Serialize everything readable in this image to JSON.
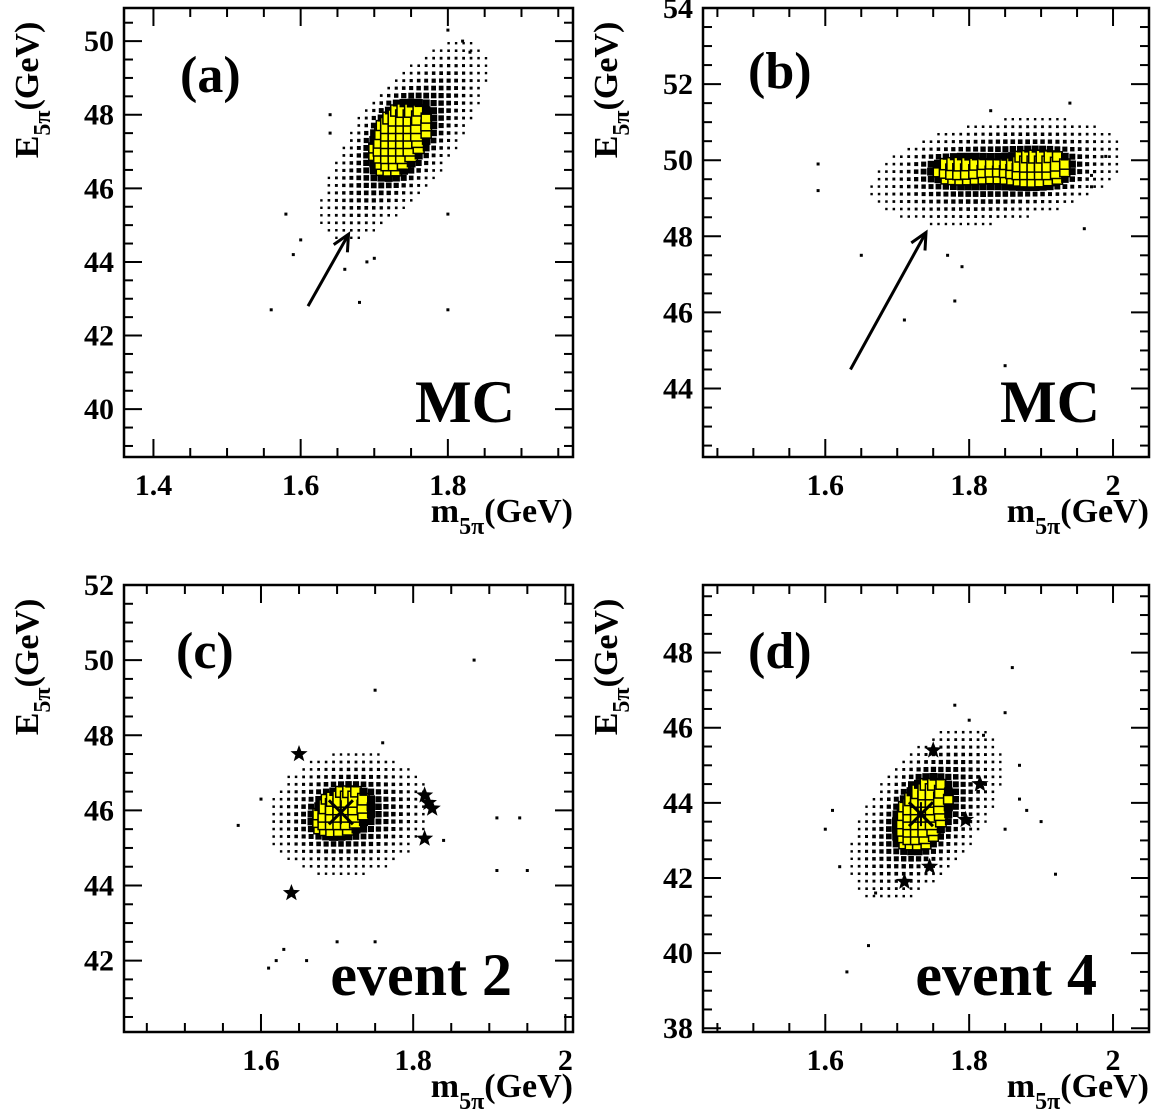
{
  "chart_data": [
    {
      "type": "scatter",
      "label": "(a)",
      "note": "MC",
      "xlabel": "m",
      "xlabel_sub": "5π",
      "xlabel_unit": "(GeV)",
      "ylabel": "E",
      "ylabel_sub": "5π",
      "ylabel_unit": "(GeV)",
      "xlim": [
        1.36,
        1.97
      ],
      "ylim": [
        38.7,
        50.9
      ],
      "xticks": [
        1.4,
        1.6,
        1.8
      ],
      "yticks": [
        40,
        42,
        44,
        46,
        48,
        50
      ],
      "histogram": {
        "center": [
          1.74,
          47.3
        ],
        "spread": [
          0.048,
          1.15
        ],
        "corr": 0.72,
        "peaks": [
          [
            1.733,
            47.45
          ],
          [
            1.723,
            47.0
          ],
          [
            1.745,
            47.7
          ]
        ]
      },
      "sparse_points": [
        [
          1.56,
          42.7
        ],
        [
          1.58,
          45.3
        ],
        [
          1.59,
          44.2
        ],
        [
          1.6,
          44.6
        ],
        [
          1.64,
          47.5
        ],
        [
          1.64,
          48.0
        ],
        [
          1.66,
          43.8
        ],
        [
          1.68,
          42.9
        ],
        [
          1.69,
          44.0
        ],
        [
          1.7,
          44.1
        ],
        [
          1.8,
          42.7
        ],
        [
          1.8,
          50.3
        ],
        [
          1.8,
          45.3
        ],
        [
          1.82,
          50.0
        ],
        [
          1.83,
          49.7
        ]
      ],
      "arrow": {
        "from": [
          1.61,
          42.8
        ],
        "to": [
          1.665,
          44.75
        ]
      }
    },
    {
      "type": "scatter",
      "label": "(b)",
      "note": "MC",
      "xlabel": "m",
      "xlabel_sub": "5π",
      "xlabel_unit": "(GeV)",
      "ylabel": "E",
      "ylabel_sub": "5π",
      "ylabel_unit": "(GeV)",
      "xlim": [
        1.43,
        2.05
      ],
      "ylim": [
        42.2,
        54.0
      ],
      "xticks": [
        1.6,
        1.8,
        2.0
      ],
      "xticklabels": [
        "1.6",
        "1.8",
        "2"
      ],
      "yticks": [
        44,
        46,
        48,
        50,
        52,
        54
      ],
      "histogram": {
        "center": [
          1.84,
          49.7
        ],
        "spread": [
          0.075,
          0.6
        ],
        "corr": 0.3,
        "peaks": [
          [
            1.785,
            49.75
          ],
          [
            1.9,
            49.9
          ],
          [
            1.893,
            49.6
          ]
        ]
      },
      "sparse_points": [
        [
          1.59,
          49.9
        ],
        [
          1.59,
          49.2
        ],
        [
          1.65,
          47.5
        ],
        [
          1.71,
          45.8
        ],
        [
          1.77,
          47.5
        ],
        [
          1.78,
          46.3
        ],
        [
          1.79,
          47.2
        ],
        [
          1.85,
          44.6
        ],
        [
          1.96,
          48.2
        ],
        [
          1.97,
          49.6
        ],
        [
          1.97,
          49.3
        ],
        [
          1.99,
          50.1
        ],
        [
          1.94,
          51.5
        ],
        [
          1.83,
          51.3
        ]
      ],
      "arrow": {
        "from": [
          1.635,
          44.5
        ],
        "to": [
          1.74,
          48.1
        ]
      }
    },
    {
      "type": "scatter",
      "label": "(c)",
      "note": "event 2",
      "xlabel": "m",
      "xlabel_sub": "5π",
      "xlabel_unit": "(GeV)",
      "ylabel": "E",
      "ylabel_sub": "5π",
      "ylabel_unit": "(GeV)",
      "xlim": [
        1.42,
        2.01
      ],
      "ylim": [
        40.1,
        52.0
      ],
      "xticks": [
        1.6,
        1.8,
        2.0
      ],
      "xticklabels": [
        "1.6",
        "1.8",
        "2"
      ],
      "yticks": [
        42,
        44,
        46,
        48,
        50,
        52
      ],
      "histogram": {
        "center": [
          1.715,
          45.9
        ],
        "spread": [
          0.045,
          0.7
        ],
        "corr": 0.1,
        "peaks": [
          [
            1.705,
            45.95
          ],
          [
            1.695,
            45.7
          ],
          [
            1.715,
            46.2
          ]
        ]
      },
      "sparse_points": [
        [
          1.57,
          45.6
        ],
        [
          1.6,
          46.3
        ],
        [
          1.61,
          41.8
        ],
        [
          1.62,
          42.0
        ],
        [
          1.63,
          42.3
        ],
        [
          1.66,
          42.0
        ],
        [
          1.7,
          42.5
        ],
        [
          1.75,
          42.5
        ],
        [
          1.75,
          49.2
        ],
        [
          1.76,
          47.8
        ],
        [
          1.88,
          50.0
        ],
        [
          1.91,
          45.8
        ],
        [
          1.91,
          44.4
        ],
        [
          1.94,
          45.8
        ],
        [
          1.95,
          44.4
        ],
        [
          1.84,
          45.2
        ]
      ],
      "stars": [
        [
          1.65,
          47.5
        ],
        [
          1.64,
          43.8
        ],
        [
          1.815,
          46.4
        ],
        [
          1.82,
          46.2
        ],
        [
          1.825,
          46.05
        ],
        [
          1.815,
          45.25
        ]
      ],
      "cross": [
        1.705,
        45.95
      ]
    },
    {
      "type": "scatter",
      "label": "(d)",
      "note": "event 4",
      "xlabel": "m",
      "xlabel_sub": "5π",
      "xlabel_unit": "(GeV)",
      "ylabel": "E",
      "ylabel_sub": "5π",
      "ylabel_unit": "(GeV)",
      "xlim": [
        1.43,
        2.05
      ],
      "ylim": [
        37.9,
        49.8
      ],
      "xticks": [
        1.6,
        1.8,
        2.0
      ],
      "xticklabels": [
        "1.6",
        "1.8",
        "2"
      ],
      "yticks": [
        38,
        40,
        42,
        44,
        46,
        48
      ],
      "histogram": {
        "center": [
          1.74,
          43.7
        ],
        "spread": [
          0.045,
          1.0
        ],
        "corr": 0.55,
        "peaks": [
          [
            1.733,
            43.7
          ],
          [
            1.725,
            43.3
          ],
          [
            1.745,
            44.1
          ]
        ]
      },
      "sparse_points": [
        [
          1.6,
          43.3
        ],
        [
          1.61,
          43.8
        ],
        [
          1.62,
          42.3
        ],
        [
          1.63,
          39.5
        ],
        [
          1.66,
          40.2
        ],
        [
          1.67,
          41.6
        ],
        [
          1.78,
          46.6
        ],
        [
          1.8,
          46.2
        ],
        [
          1.82,
          45.8
        ],
        [
          1.85,
          46.4
        ],
        [
          1.86,
          47.6
        ],
        [
          1.87,
          45.0
        ],
        [
          1.87,
          44.1
        ],
        [
          1.88,
          43.8
        ],
        [
          1.9,
          43.5
        ],
        [
          1.92,
          42.1
        ],
        [
          1.85,
          43.3
        ]
      ],
      "stars": [
        [
          1.75,
          45.4
        ],
        [
          1.815,
          44.5
        ],
        [
          1.795,
          43.55
        ],
        [
          1.745,
          42.3
        ],
        [
          1.71,
          41.9
        ]
      ],
      "cross": [
        1.733,
        43.7
      ]
    }
  ]
}
